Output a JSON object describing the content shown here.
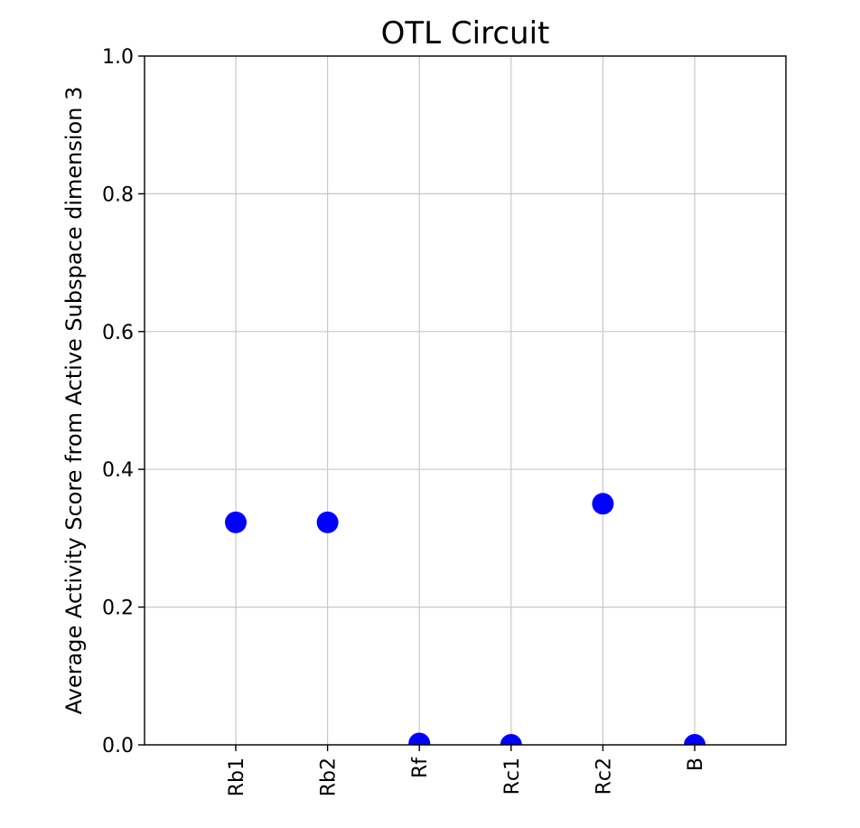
{
  "chart_data": {
    "type": "scatter",
    "title": "OTL Circuit",
    "xlabel": "",
    "ylabel": "Average Activity Score from Active Subspace dimension 3",
    "categories": [
      "Rb1",
      "Rb2",
      "Rf",
      "Rc1",
      "Rc2",
      "B"
    ],
    "values": [
      0.323,
      0.323,
      0.002,
      0.0,
      0.35,
      0.0
    ],
    "ylim": [
      0.0,
      1.0
    ],
    "yticks": [
      "0.0",
      "0.2",
      "0.4",
      "0.6",
      "0.8",
      "1.0"
    ],
    "grid": true,
    "marker_color": "#0000ff"
  }
}
